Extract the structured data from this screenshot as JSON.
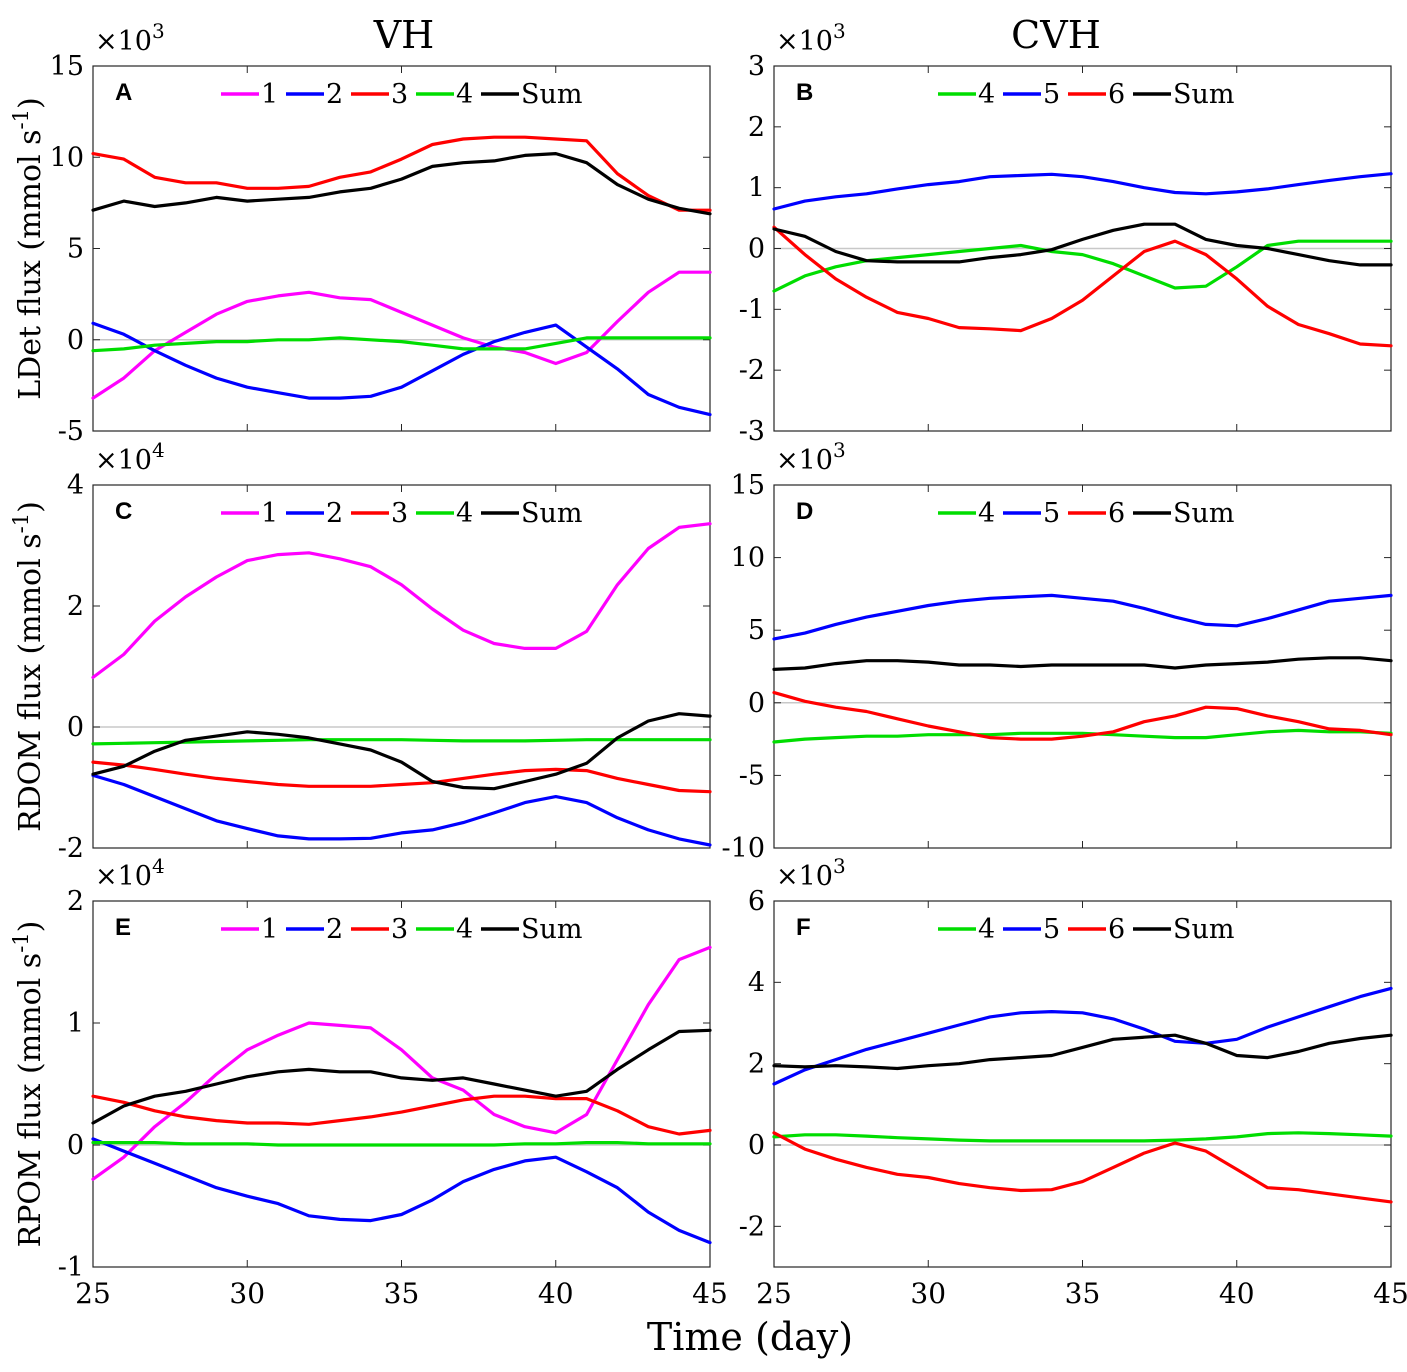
{
  "figure": {
    "column_titles": [
      "VH",
      "CVH"
    ],
    "xlabel": "Time (day)"
  },
  "colors": {
    "1": "#ff00ff",
    "2": "#0000ff",
    "3": "#ff0000",
    "4": "#00dd00",
    "5": "#0000ff",
    "6": "#ff0000",
    "Sum": "#000000"
  },
  "chart_data": [
    {
      "id": "A",
      "type": "line",
      "title": "",
      "panel_label": "A",
      "ylabel": "LDet flux (mmol s-1)",
      "ylabel_main": "LDet flux (mmol s",
      "ylabel_sup": "-1",
      "ylabel_end": ")",
      "scale_label": "×10",
      "scale_exp": "3",
      "xlim": [
        25,
        45
      ],
      "ylim": [
        -5,
        15
      ],
      "xticks": [
        25,
        30,
        35,
        40,
        45
      ],
      "xtick_labels": [],
      "yticks": [
        -5,
        0,
        5,
        10,
        15
      ],
      "x": [
        25,
        26,
        27,
        28,
        29,
        30,
        31,
        32,
        33,
        34,
        35,
        36,
        37,
        38,
        39,
        40,
        41,
        42,
        43,
        44,
        45
      ],
      "legend": [
        "1",
        "2",
        "3",
        "4",
        "Sum"
      ],
      "series": [
        {
          "name": "1",
          "values": [
            -3.2,
            -2.1,
            -0.6,
            0.4,
            1.4,
            2.1,
            2.4,
            2.6,
            2.3,
            2.2,
            1.5,
            0.8,
            0.1,
            -0.4,
            -0.7,
            -1.3,
            -0.7,
            1.0,
            2.6,
            3.7,
            3.7
          ]
        },
        {
          "name": "2",
          "values": [
            0.9,
            0.3,
            -0.6,
            -1.4,
            -2.1,
            -2.6,
            -2.9,
            -3.2,
            -3.2,
            -3.1,
            -2.6,
            -1.7,
            -0.8,
            -0.1,
            0.4,
            0.8,
            -0.4,
            -1.6,
            -3.0,
            -3.7,
            -4.1
          ]
        },
        {
          "name": "3",
          "values": [
            10.2,
            9.9,
            8.9,
            8.6,
            8.6,
            8.3,
            8.3,
            8.4,
            8.9,
            9.2,
            9.9,
            10.7,
            11.0,
            11.1,
            11.1,
            11.0,
            10.9,
            9.1,
            7.9,
            7.1,
            7.1
          ]
        },
        {
          "name": "4",
          "values": [
            -0.6,
            -0.5,
            -0.3,
            -0.2,
            -0.1,
            -0.1,
            0.0,
            0.0,
            0.1,
            0.0,
            -0.1,
            -0.3,
            -0.5,
            -0.5,
            -0.5,
            -0.2,
            0.1,
            0.1,
            0.1,
            0.1,
            0.1
          ]
        },
        {
          "name": "Sum",
          "values": [
            7.1,
            7.6,
            7.3,
            7.5,
            7.8,
            7.6,
            7.7,
            7.8,
            8.1,
            8.3,
            8.8,
            9.5,
            9.7,
            9.8,
            10.1,
            10.2,
            9.7,
            8.5,
            7.7,
            7.2,
            6.9
          ]
        }
      ]
    },
    {
      "id": "B",
      "type": "line",
      "title": "",
      "panel_label": "B",
      "ylabel": "",
      "ylabel_main": "",
      "ylabel_sup": "",
      "ylabel_end": "",
      "scale_label": "×10",
      "scale_exp": "3",
      "xlim": [
        25,
        45
      ],
      "ylim": [
        -3,
        3
      ],
      "xticks": [
        25,
        30,
        35,
        40,
        45
      ],
      "xtick_labels": [],
      "yticks": [
        -3,
        -2,
        -1,
        0,
        1,
        2,
        3
      ],
      "x": [
        25,
        26,
        27,
        28,
        29,
        30,
        31,
        32,
        33,
        34,
        35,
        36,
        37,
        38,
        39,
        40,
        41,
        42,
        43,
        44,
        45
      ],
      "legend": [
        "4",
        "5",
        "6",
        "Sum"
      ],
      "series": [
        {
          "name": "4",
          "values": [
            -0.7,
            -0.45,
            -0.3,
            -0.2,
            -0.15,
            -0.1,
            -0.05,
            0.0,
            0.05,
            -0.05,
            -0.1,
            -0.25,
            -0.45,
            -0.65,
            -0.62,
            -0.3,
            0.05,
            0.12,
            0.12,
            0.12,
            0.12
          ]
        },
        {
          "name": "5",
          "values": [
            0.65,
            0.78,
            0.85,
            0.9,
            0.98,
            1.05,
            1.1,
            1.18,
            1.2,
            1.22,
            1.18,
            1.1,
            1.0,
            0.92,
            0.9,
            0.93,
            0.98,
            1.05,
            1.12,
            1.18,
            1.23
          ]
        },
        {
          "name": "6",
          "values": [
            0.35,
            -0.1,
            -0.5,
            -0.8,
            -1.05,
            -1.15,
            -1.3,
            -1.32,
            -1.35,
            -1.15,
            -0.85,
            -0.45,
            -0.05,
            0.12,
            -0.1,
            -0.5,
            -0.95,
            -1.25,
            -1.4,
            -1.57,
            -1.6
          ]
        },
        {
          "name": "Sum",
          "values": [
            0.32,
            0.2,
            -0.05,
            -0.2,
            -0.22,
            -0.22,
            -0.22,
            -0.15,
            -0.1,
            -0.02,
            0.15,
            0.3,
            0.4,
            0.4,
            0.15,
            0.05,
            0.0,
            -0.1,
            -0.2,
            -0.27,
            -0.27
          ]
        }
      ]
    },
    {
      "id": "C",
      "type": "line",
      "title": "",
      "panel_label": "C",
      "ylabel": "RDOM flux (mmol s-1)",
      "ylabel_main": "RDOM flux (mmol s",
      "ylabel_sup": "-1",
      "ylabel_end": ")",
      "scale_label": "×10",
      "scale_exp": "4",
      "xlim": [
        25,
        45
      ],
      "ylim": [
        -2,
        4
      ],
      "xticks": [
        25,
        30,
        35,
        40,
        45
      ],
      "xtick_labels": [],
      "yticks": [
        -2,
        0,
        2,
        4
      ],
      "x": [
        25,
        26,
        27,
        28,
        29,
        30,
        31,
        32,
        33,
        34,
        35,
        36,
        37,
        38,
        39,
        40,
        41,
        42,
        43,
        44,
        45
      ],
      "legend": [
        "1",
        "2",
        "3",
        "4",
        "Sum"
      ],
      "series": [
        {
          "name": "1",
          "values": [
            0.82,
            1.2,
            1.75,
            2.15,
            2.48,
            2.75,
            2.85,
            2.88,
            2.78,
            2.65,
            2.35,
            1.95,
            1.6,
            1.38,
            1.3,
            1.3,
            1.58,
            2.35,
            2.95,
            3.3,
            3.36
          ]
        },
        {
          "name": "2",
          "values": [
            -0.8,
            -0.95,
            -1.15,
            -1.35,
            -1.55,
            -1.68,
            -1.8,
            -1.85,
            -1.85,
            -1.84,
            -1.75,
            -1.7,
            -1.58,
            -1.42,
            -1.25,
            -1.15,
            -1.25,
            -1.5,
            -1.7,
            -1.85,
            -1.95
          ]
        },
        {
          "name": "3",
          "values": [
            -0.58,
            -0.63,
            -0.7,
            -0.78,
            -0.85,
            -0.9,
            -0.95,
            -0.98,
            -0.98,
            -0.98,
            -0.95,
            -0.92,
            -0.85,
            -0.78,
            -0.72,
            -0.7,
            -0.72,
            -0.85,
            -0.95,
            -1.05,
            -1.07
          ]
        },
        {
          "name": "4",
          "values": [
            -0.28,
            -0.27,
            -0.26,
            -0.25,
            -0.24,
            -0.23,
            -0.22,
            -0.21,
            -0.21,
            -0.21,
            -0.21,
            -0.22,
            -0.23,
            -0.23,
            -0.23,
            -0.22,
            -0.21,
            -0.21,
            -0.21,
            -0.21,
            -0.21
          ]
        },
        {
          "name": "Sum",
          "values": [
            -0.78,
            -0.65,
            -0.4,
            -0.22,
            -0.15,
            -0.08,
            -0.12,
            -0.18,
            -0.28,
            -0.38,
            -0.58,
            -0.9,
            -1.0,
            -1.02,
            -0.9,
            -0.78,
            -0.6,
            -0.18,
            0.1,
            0.22,
            0.18
          ]
        }
      ]
    },
    {
      "id": "D",
      "type": "line",
      "title": "",
      "panel_label": "D",
      "ylabel": "",
      "ylabel_main": "",
      "ylabel_sup": "",
      "ylabel_end": "",
      "scale_label": "×10",
      "scale_exp": "3",
      "xlim": [
        25,
        45
      ],
      "ylim": [
        -10,
        15
      ],
      "xticks": [
        25,
        30,
        35,
        40,
        45
      ],
      "xtick_labels": [],
      "yticks": [
        -10,
        -5,
        0,
        5,
        10,
        15
      ],
      "x": [
        25,
        26,
        27,
        28,
        29,
        30,
        31,
        32,
        33,
        34,
        35,
        36,
        37,
        38,
        39,
        40,
        41,
        42,
        43,
        44,
        45
      ],
      "legend": [
        "4",
        "5",
        "6",
        "Sum"
      ],
      "series": [
        {
          "name": "4",
          "values": [
            -2.7,
            -2.5,
            -2.4,
            -2.3,
            -2.3,
            -2.2,
            -2.2,
            -2.2,
            -2.1,
            -2.1,
            -2.1,
            -2.2,
            -2.3,
            -2.4,
            -2.4,
            -2.2,
            -2.0,
            -1.9,
            -2.0,
            -2.0,
            -2.1
          ]
        },
        {
          "name": "5",
          "values": [
            4.4,
            4.8,
            5.4,
            5.9,
            6.3,
            6.7,
            7.0,
            7.2,
            7.3,
            7.4,
            7.2,
            7.0,
            6.5,
            5.9,
            5.4,
            5.3,
            5.8,
            6.4,
            7.0,
            7.2,
            7.4
          ]
        },
        {
          "name": "6",
          "values": [
            0.7,
            0.1,
            -0.3,
            -0.6,
            -1.1,
            -1.6,
            -2.0,
            -2.4,
            -2.5,
            -2.5,
            -2.3,
            -2.0,
            -1.3,
            -0.9,
            -0.3,
            -0.4,
            -0.9,
            -1.3,
            -1.8,
            -1.9,
            -2.2
          ]
        },
        {
          "name": "Sum",
          "values": [
            2.3,
            2.4,
            2.7,
            2.9,
            2.9,
            2.8,
            2.6,
            2.6,
            2.5,
            2.6,
            2.6,
            2.6,
            2.6,
            2.4,
            2.6,
            2.7,
            2.8,
            3.0,
            3.1,
            3.1,
            2.9
          ]
        }
      ]
    },
    {
      "id": "E",
      "type": "line",
      "title": "",
      "panel_label": "E",
      "ylabel": "RPOM flux (mmol s-1)",
      "ylabel_main": "RPOM flux (mmol s",
      "ylabel_sup": "-1",
      "ylabel_end": ")",
      "scale_label": "×10",
      "scale_exp": "4",
      "xlim": [
        25,
        45
      ],
      "ylim": [
        -1,
        2
      ],
      "xticks": [
        25,
        30,
        35,
        40,
        45
      ],
      "xtick_labels": [
        "25",
        "30",
        "35",
        "40",
        "45"
      ],
      "yticks": [
        -1,
        0,
        1,
        2
      ],
      "x": [
        25,
        26,
        27,
        28,
        29,
        30,
        31,
        32,
        33,
        34,
        35,
        36,
        37,
        38,
        39,
        40,
        41,
        42,
        43,
        44,
        45
      ],
      "legend": [
        "1",
        "2",
        "3",
        "4",
        "Sum"
      ],
      "series": [
        {
          "name": "1",
          "values": [
            -0.28,
            -0.1,
            0.15,
            0.35,
            0.58,
            0.78,
            0.9,
            1.0,
            0.98,
            0.96,
            0.78,
            0.55,
            0.45,
            0.25,
            0.15,
            0.1,
            0.25,
            0.7,
            1.15,
            1.52,
            1.62
          ]
        },
        {
          "name": "2",
          "values": [
            0.05,
            -0.05,
            -0.15,
            -0.25,
            -0.35,
            -0.42,
            -0.48,
            -0.58,
            -0.61,
            -0.62,
            -0.57,
            -0.45,
            -0.3,
            -0.2,
            -0.13,
            -0.1,
            -0.22,
            -0.35,
            -0.55,
            -0.7,
            -0.8
          ]
        },
        {
          "name": "3",
          "values": [
            0.4,
            0.35,
            0.28,
            0.23,
            0.2,
            0.18,
            0.18,
            0.17,
            0.2,
            0.23,
            0.27,
            0.32,
            0.37,
            0.4,
            0.4,
            0.38,
            0.38,
            0.28,
            0.15,
            0.09,
            0.12
          ]
        },
        {
          "name": "4",
          "values": [
            0.02,
            0.02,
            0.02,
            0.01,
            0.01,
            0.01,
            0.0,
            0.0,
            0.0,
            0.0,
            0.0,
            0.0,
            0.0,
            0.0,
            0.01,
            0.01,
            0.02,
            0.02,
            0.01,
            0.01,
            0.01
          ]
        },
        {
          "name": "Sum",
          "values": [
            0.18,
            0.32,
            0.4,
            0.44,
            0.5,
            0.56,
            0.6,
            0.62,
            0.6,
            0.6,
            0.55,
            0.53,
            0.55,
            0.5,
            0.45,
            0.4,
            0.44,
            0.62,
            0.78,
            0.93,
            0.94
          ]
        }
      ]
    },
    {
      "id": "F",
      "type": "line",
      "title": "",
      "panel_label": "F",
      "ylabel": "",
      "ylabel_main": "",
      "ylabel_sup": "",
      "ylabel_end": "",
      "scale_label": "×10",
      "scale_exp": "3",
      "xlim": [
        25,
        45
      ],
      "ylim": [
        -3,
        6
      ],
      "xticks": [
        25,
        30,
        35,
        40,
        45
      ],
      "xtick_labels": [
        "25",
        "30",
        "35",
        "40",
        "45"
      ],
      "yticks": [
        -2,
        0,
        2,
        4,
        6
      ],
      "x": [
        25,
        26,
        27,
        28,
        29,
        30,
        31,
        32,
        33,
        34,
        35,
        36,
        37,
        38,
        39,
        40,
        41,
        42,
        43,
        44,
        45
      ],
      "legend": [
        "4",
        "5",
        "6",
        "Sum"
      ],
      "series": [
        {
          "name": "4",
          "values": [
            0.2,
            0.25,
            0.25,
            0.22,
            0.18,
            0.15,
            0.12,
            0.1,
            0.1,
            0.1,
            0.1,
            0.1,
            0.1,
            0.12,
            0.15,
            0.2,
            0.28,
            0.3,
            0.28,
            0.25,
            0.22
          ]
        },
        {
          "name": "5",
          "values": [
            1.5,
            1.85,
            2.1,
            2.35,
            2.55,
            2.75,
            2.95,
            3.15,
            3.25,
            3.28,
            3.25,
            3.1,
            2.85,
            2.55,
            2.5,
            2.6,
            2.9,
            3.15,
            3.4,
            3.65,
            3.85
          ]
        },
        {
          "name": "6",
          "values": [
            0.3,
            -0.1,
            -0.35,
            -0.55,
            -0.72,
            -0.8,
            -0.95,
            -1.05,
            -1.12,
            -1.1,
            -0.9,
            -0.55,
            -0.2,
            0.05,
            -0.15,
            -0.6,
            -1.05,
            -1.1,
            -1.2,
            -1.3,
            -1.4
          ]
        },
        {
          "name": "Sum",
          "values": [
            1.95,
            1.92,
            1.95,
            1.92,
            1.88,
            1.95,
            2.0,
            2.1,
            2.15,
            2.2,
            2.4,
            2.6,
            2.65,
            2.7,
            2.5,
            2.2,
            2.15,
            2.3,
            2.5,
            2.62,
            2.7
          ]
        }
      ]
    }
  ]
}
